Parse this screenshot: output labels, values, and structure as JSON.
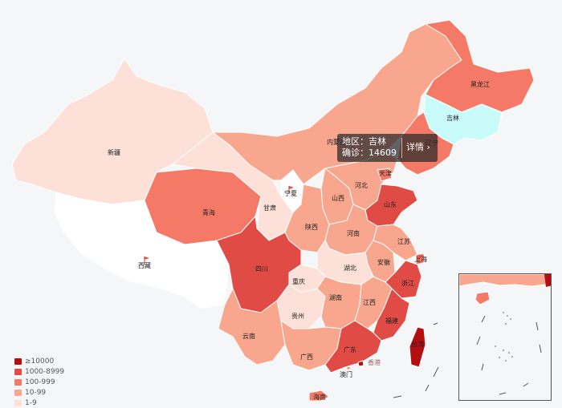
{
  "tooltip": {
    "region_label": "地区：",
    "region_value": "吉林",
    "confirmed_label": "确诊：",
    "confirmed_value": "14609",
    "detail_label": "详情"
  },
  "legend": [
    {
      "label": "≥10000",
      "color": "#b30f12"
    },
    {
      "label": "1000-8999",
      "color": "#e14b45"
    },
    {
      "label": "100-999",
      "color": "#f47a67"
    },
    {
      "label": "10-99",
      "color": "#f8a78e"
    },
    {
      "label": "1-9",
      "color": "#fde1d8"
    }
  ],
  "colors": {
    "bg": "#f5f6f8",
    "highlight": "#c8fbf9",
    "empty": "#ffffff"
  },
  "provinces": {
    "xinjiang": "新疆",
    "xizang": "西藏",
    "qinghai": "青海",
    "gansu": "甘肃",
    "ningxia": "宁夏",
    "neimenggu": "内蒙古",
    "heilongjiang": "黑龙江",
    "jilin": "吉林",
    "liaoning": "辽宁",
    "hebei": "河北",
    "tianjin": "天津",
    "shanxi": "山西",
    "shandong": "山东",
    "henan": "河南",
    "shaanxi": "陕西",
    "sichuan": "四川",
    "chongqing": "重庆",
    "hubei": "湖北",
    "anhui": "安徽",
    "jiangsu": "江苏",
    "shanghai": "上海",
    "zhejiang": "浙江",
    "hunan": "湖南",
    "jiangxi": "江西",
    "guizhou": "贵州",
    "yunnan": "云南",
    "guangxi": "广西",
    "guangdong": "广东",
    "fujian": "福建",
    "taiwan": "台湾",
    "hongkong": "香港",
    "macau": "澳门",
    "hainan": "海南"
  }
}
